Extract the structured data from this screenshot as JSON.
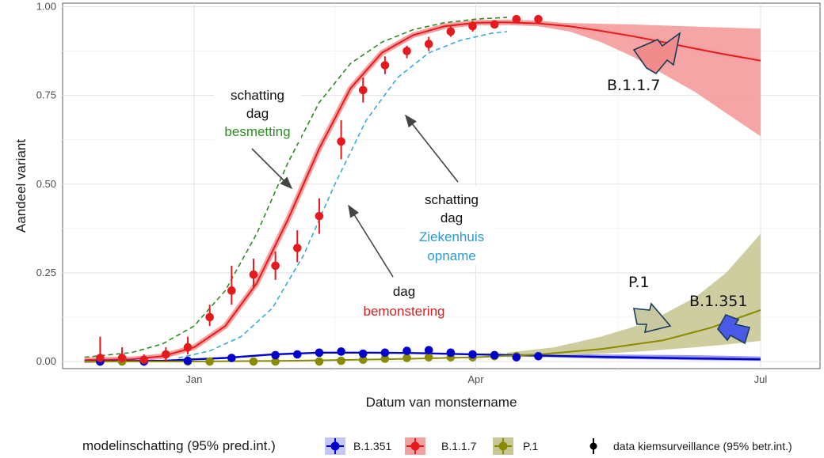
{
  "chart_data": {
    "type": "line",
    "title": "",
    "xlabel": "Datum van monstername",
    "ylabel": "Aandeel variant",
    "x_ticks": [
      {
        "label": "Jan",
        "day": 0
      },
      {
        "label": "Apr",
        "day": 90
      },
      {
        "label": "Jul",
        "day": 181
      }
    ],
    "x_range_days": [
      -42,
      200
    ],
    "y_ticks": [
      "0.00",
      "0.25",
      "0.50",
      "0.75",
      "1.00"
    ],
    "ylim": [
      -0.02,
      1.01
    ],
    "grid": true,
    "series": [
      {
        "name": "B.1.1.7",
        "color": "#e41a1c",
        "fill": "#f4a0a0",
        "fit_x": [
          -35,
          -20,
          -10,
          0,
          10,
          20,
          30,
          40,
          50,
          60,
          70,
          80,
          90,
          100,
          110,
          120,
          130,
          140,
          150,
          160,
          170,
          181
        ],
        "fit_y": [
          0.004,
          0.006,
          0.015,
          0.04,
          0.1,
          0.22,
          0.4,
          0.6,
          0.77,
          0.87,
          0.92,
          0.945,
          0.955,
          0.956,
          0.953,
          0.945,
          0.932,
          0.917,
          0.9,
          0.882,
          0.865,
          0.848
        ],
        "band_x": [
          100,
          110,
          120,
          130,
          140,
          150,
          160,
          170,
          181
        ],
        "band_low": [
          0.952,
          0.945,
          0.93,
          0.9,
          0.86,
          0.81,
          0.76,
          0.7,
          0.635
        ],
        "band_high": [
          0.958,
          0.956,
          0.954,
          0.952,
          0.95,
          0.947,
          0.944,
          0.941,
          0.938
        ],
        "points": [
          {
            "x": -30,
            "y": 0.01,
            "lo": 0.0,
            "hi": 0.07
          },
          {
            "x": -23,
            "y": 0.01,
            "lo": 0.0,
            "hi": 0.04
          },
          {
            "x": -16,
            "y": 0.005,
            "lo": 0.0,
            "hi": 0.02
          },
          {
            "x": -9,
            "y": 0.02,
            "lo": 0.0,
            "hi": 0.04
          },
          {
            "x": -2,
            "y": 0.04,
            "lo": 0.02,
            "hi": 0.07
          },
          {
            "x": 5,
            "y": 0.125,
            "lo": 0.1,
            "hi": 0.16
          },
          {
            "x": 12,
            "y": 0.2,
            "lo": 0.16,
            "hi": 0.27
          },
          {
            "x": 19,
            "y": 0.245,
            "lo": 0.21,
            "hi": 0.29
          },
          {
            "x": 26,
            "y": 0.27,
            "lo": 0.23,
            "hi": 0.31
          },
          {
            "x": 33,
            "y": 0.32,
            "lo": 0.28,
            "hi": 0.37
          },
          {
            "x": 40,
            "y": 0.41,
            "lo": 0.36,
            "hi": 0.46
          },
          {
            "x": 47,
            "y": 0.62,
            "lo": 0.57,
            "hi": 0.68
          },
          {
            "x": 54,
            "y": 0.765,
            "lo": 0.73,
            "hi": 0.8
          },
          {
            "x": 61,
            "y": 0.835,
            "lo": 0.81,
            "hi": 0.86
          },
          {
            "x": 68,
            "y": 0.875,
            "lo": 0.855,
            "hi": 0.89
          },
          {
            "x": 75,
            "y": 0.895,
            "lo": 0.875,
            "hi": 0.915
          },
          {
            "x": 82,
            "y": 0.93,
            "lo": 0.915,
            "hi": 0.945
          },
          {
            "x": 89,
            "y": 0.945,
            "lo": 0.93,
            "hi": 0.96
          },
          {
            "x": 96,
            "y": 0.95,
            "lo": 0.94,
            "hi": 0.96
          },
          {
            "x": 103,
            "y": 0.965,
            "lo": 0.955,
            "hi": 0.975
          },
          {
            "x": 110,
            "y": 0.965,
            "lo": 0.955,
            "hi": 0.975
          }
        ]
      },
      {
        "name": "B.1.351",
        "color": "#0000cc",
        "fill": "#8c8cf0",
        "fit_x": [
          -35,
          -10,
          10,
          25,
          40,
          55,
          70,
          90,
          110,
          130,
          150,
          181
        ],
        "fit_y": [
          0.0,
          0.002,
          0.01,
          0.02,
          0.025,
          0.025,
          0.024,
          0.02,
          0.017,
          0.013,
          0.01,
          0.006
        ],
        "band_x": [
          100,
          130,
          160,
          181
        ],
        "band_low": [
          0.015,
          0.008,
          0.004,
          0.002
        ],
        "band_high": [
          0.023,
          0.02,
          0.018,
          0.014
        ],
        "points": [
          {
            "x": -30,
            "y": 0.0,
            "lo": 0.0,
            "hi": 0.005
          },
          {
            "x": -16,
            "y": 0.0,
            "lo": 0.0,
            "hi": 0.005
          },
          {
            "x": -2,
            "y": 0.002,
            "lo": 0.0,
            "hi": 0.006
          },
          {
            "x": 12,
            "y": 0.01,
            "lo": 0.0,
            "hi": 0.02
          },
          {
            "x": 26,
            "y": 0.018,
            "lo": 0.01,
            "hi": 0.025
          },
          {
            "x": 33,
            "y": 0.02,
            "lo": 0.012,
            "hi": 0.028
          },
          {
            "x": 40,
            "y": 0.025,
            "lo": 0.018,
            "hi": 0.032
          },
          {
            "x": 47,
            "y": 0.028,
            "lo": 0.02,
            "hi": 0.036
          },
          {
            "x": 54,
            "y": 0.022,
            "lo": 0.015,
            "hi": 0.03
          },
          {
            "x": 61,
            "y": 0.025,
            "lo": 0.017,
            "hi": 0.033
          },
          {
            "x": 68,
            "y": 0.03,
            "lo": 0.022,
            "hi": 0.037
          },
          {
            "x": 75,
            "y": 0.032,
            "lo": 0.025,
            "hi": 0.04
          },
          {
            "x": 82,
            "y": 0.025,
            "lo": 0.018,
            "hi": 0.032
          },
          {
            "x": 89,
            "y": 0.02,
            "lo": 0.013,
            "hi": 0.027
          },
          {
            "x": 96,
            "y": 0.018,
            "lo": 0.012,
            "hi": 0.025
          },
          {
            "x": 103,
            "y": 0.012,
            "lo": 0.006,
            "hi": 0.02
          },
          {
            "x": 110,
            "y": 0.015,
            "lo": 0.008,
            "hi": 0.022
          }
        ]
      },
      {
        "name": "P.1",
        "color": "#8b8b00",
        "fill": "#c8c896",
        "fit_x": [
          -35,
          0,
          30,
          60,
          90,
          110,
          130,
          150,
          165,
          181
        ],
        "fit_y": [
          0.0,
          0.0,
          0.002,
          0.006,
          0.012,
          0.02,
          0.035,
          0.06,
          0.095,
          0.145
        ],
        "band_x": [
          100,
          115,
          130,
          145,
          160,
          170,
          181
        ],
        "band_low": [
          0.012,
          0.016,
          0.022,
          0.03,
          0.04,
          0.048,
          0.058
        ],
        "band_high": [
          0.025,
          0.04,
          0.07,
          0.11,
          0.18,
          0.25,
          0.36
        ],
        "points": [
          {
            "x": -30,
            "y": 0.0,
            "lo": 0.0,
            "hi": 0.003
          },
          {
            "x": -23,
            "y": 0.0,
            "lo": 0.0,
            "hi": 0.003
          },
          {
            "x": -16,
            "y": 0.0,
            "lo": 0.0,
            "hi": 0.003
          },
          {
            "x": -2,
            "y": 0.0,
            "lo": 0.0,
            "hi": 0.003
          },
          {
            "x": 5,
            "y": 0.0,
            "lo": 0.0,
            "hi": 0.003
          },
          {
            "x": 19,
            "y": 0.0,
            "lo": 0.0,
            "hi": 0.003
          },
          {
            "x": 26,
            "y": 0.0,
            "lo": 0.0,
            "hi": 0.003
          },
          {
            "x": 40,
            "y": 0.0,
            "lo": 0.0,
            "hi": 0.003
          },
          {
            "x": 47,
            "y": 0.002,
            "lo": 0.0,
            "hi": 0.005
          },
          {
            "x": 54,
            "y": 0.005,
            "lo": 0.0,
            "hi": 0.01
          },
          {
            "x": 61,
            "y": 0.008,
            "lo": 0.003,
            "hi": 0.013
          },
          {
            "x": 68,
            "y": 0.01,
            "lo": 0.005,
            "hi": 0.015
          },
          {
            "x": 75,
            "y": 0.012,
            "lo": 0.007,
            "hi": 0.017
          },
          {
            "x": 82,
            "y": 0.012,
            "lo": 0.007,
            "hi": 0.017
          },
          {
            "x": 89,
            "y": 0.012,
            "lo": 0.007,
            "hi": 0.017
          },
          {
            "x": 96,
            "y": 0.015,
            "lo": 0.01,
            "hi": 0.02
          },
          {
            "x": 103,
            "y": 0.015,
            "lo": 0.01,
            "hi": 0.02
          }
        ]
      }
    ],
    "curves": [
      {
        "id": "infection",
        "color": "#2e8b22",
        "x": [
          -35,
          -20,
          -10,
          0,
          10,
          20,
          30,
          40,
          50,
          60,
          70,
          80,
          90,
          100
        ],
        "y": [
          0.012,
          0.025,
          0.05,
          0.1,
          0.2,
          0.36,
          0.56,
          0.73,
          0.84,
          0.9,
          0.935,
          0.955,
          0.965,
          0.97
        ]
      },
      {
        "id": "hospital",
        "color": "#3aaad6",
        "x": [
          -5,
          5,
          15,
          25,
          35,
          45,
          55,
          65,
          75,
          85,
          95,
          100
        ],
        "y": [
          0.01,
          0.03,
          0.07,
          0.15,
          0.3,
          0.5,
          0.68,
          0.8,
          0.87,
          0.905,
          0.925,
          0.93
        ]
      }
    ]
  },
  "annotations": {
    "infection": {
      "line1": "schatting",
      "line2": "dag",
      "line3": "besmetting",
      "color": "#2e8b22"
    },
    "hospital": {
      "line1": "schatting",
      "line2": "dag",
      "line3": "Ziekenhuis",
      "line4": "opname",
      "color": "#2b9ad0"
    },
    "sampling": {
      "line1": "dag",
      "line2": "bemonstering",
      "color": "#d62020"
    }
  },
  "variant_labels": {
    "b117": "B.1.1.7",
    "p1": "P.1",
    "b1351": "B.1.351"
  },
  "legend": {
    "title": "modelinschatting (95% pred.int.)",
    "items": [
      "B.1.351",
      "B.1.1.7",
      "P.1"
    ],
    "data_label": "data kiemsurveillance (95% betr.int.)"
  }
}
